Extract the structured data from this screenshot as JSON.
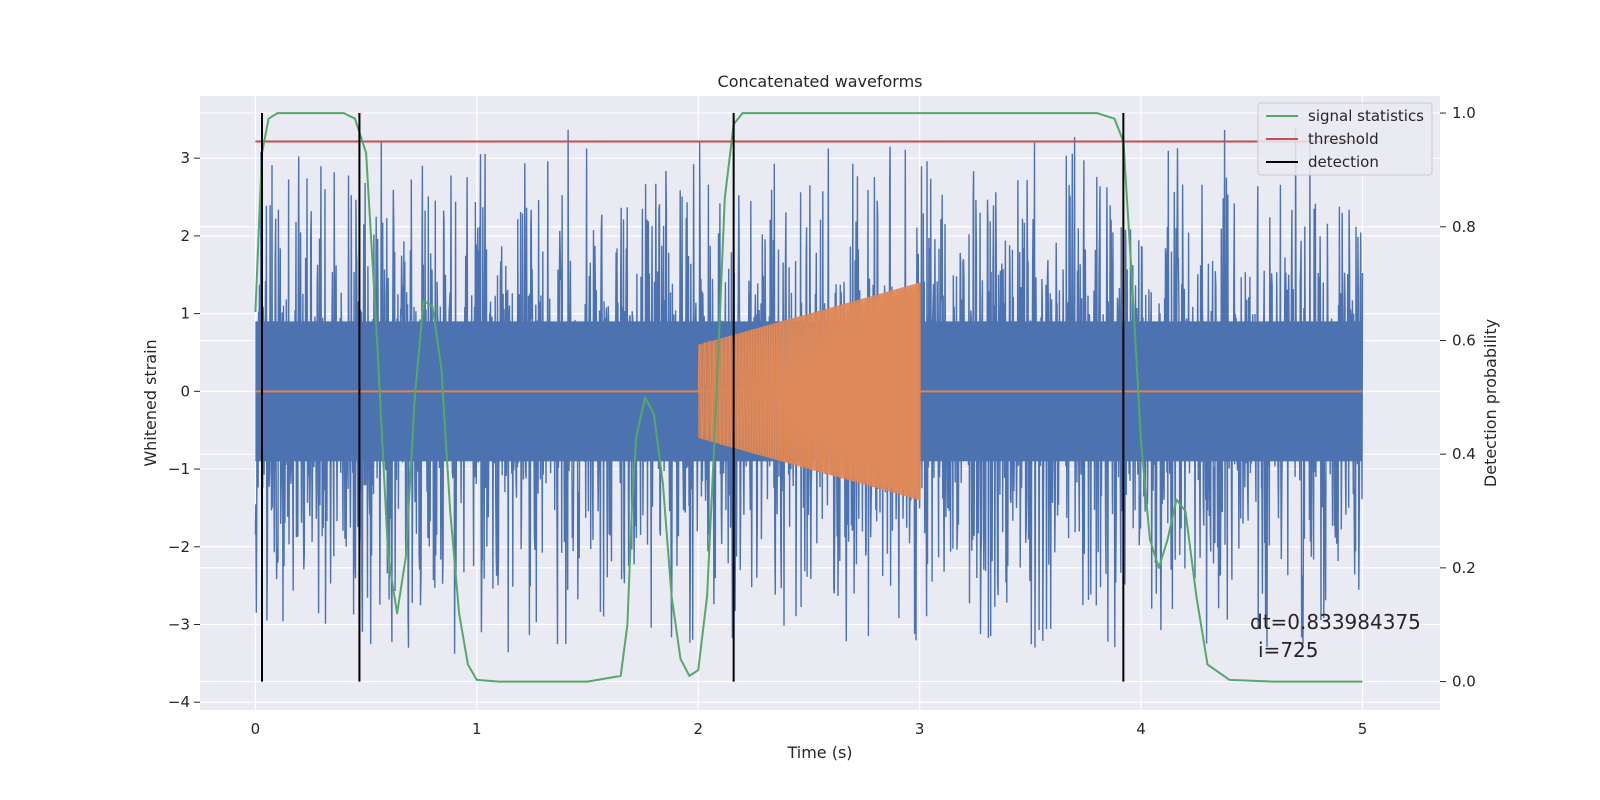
{
  "chart_data": {
    "type": "line",
    "title": "Concatenated waveforms",
    "xlabel": "Time (s)",
    "ylabel": "Whitened strain",
    "ylabel_right": "Detection probability",
    "xlim": [
      -0.25,
      5.35
    ],
    "ylim": [
      -4.1,
      3.8
    ],
    "ylim_right": [
      -0.05,
      1.03
    ],
    "x_ticks": [
      0,
      1,
      2,
      3,
      4,
      5
    ],
    "x_tick_labels": [
      "0",
      "1",
      "2",
      "3",
      "4",
      "5"
    ],
    "y_ticks": [
      3,
      2,
      1,
      0,
      -1,
      -2,
      -3,
      -4
    ],
    "y_tick_labels": [
      "3",
      "2",
      "1",
      "0",
      "−1",
      "−2",
      "−3",
      "−4"
    ],
    "y_right_ticks": [
      1.0,
      0.8,
      0.6,
      0.4,
      0.2,
      0.0
    ],
    "y_right_tick_labels": [
      "1.0",
      "0.8",
      "0.6",
      "0.4",
      "0.2",
      "0.0"
    ],
    "grid": true,
    "legend_position": "top-right",
    "colors": {
      "strain": "#4c72b0",
      "injection": "#dd8452",
      "signal_statistics": "#55a868",
      "threshold": "#c44e52",
      "detection": "#000000",
      "plot_background": "#eaeaf2",
      "grid": "#ffffff"
    },
    "series": [
      {
        "name": "signal statistics",
        "axis": "right",
        "x": [
          0.0,
          0.03,
          0.06,
          0.1,
          0.2,
          0.3,
          0.4,
          0.45,
          0.5,
          0.55,
          0.6,
          0.64,
          0.68,
          0.72,
          0.76,
          0.8,
          0.84,
          0.88,
          0.92,
          0.96,
          1.0,
          1.1,
          1.3,
          1.5,
          1.65,
          1.68,
          1.7,
          1.72,
          1.76,
          1.8,
          1.84,
          1.88,
          1.92,
          1.96,
          2.0,
          2.04,
          2.08,
          2.12,
          2.16,
          2.2,
          2.3,
          2.5,
          3.0,
          3.5,
          3.8,
          3.88,
          3.92,
          3.96,
          4.0,
          4.04,
          4.08,
          4.12,
          4.16,
          4.2,
          4.25,
          4.3,
          4.4,
          4.6,
          5.0
        ],
        "values": [
          0.65,
          0.93,
          0.99,
          1.0,
          1.0,
          1.0,
          1.0,
          0.99,
          0.93,
          0.6,
          0.22,
          0.12,
          0.22,
          0.5,
          0.67,
          0.66,
          0.55,
          0.3,
          0.12,
          0.03,
          0.003,
          0.0,
          0.0,
          0.0,
          0.01,
          0.1,
          0.3,
          0.43,
          0.5,
          0.47,
          0.35,
          0.15,
          0.04,
          0.01,
          0.02,
          0.15,
          0.48,
          0.85,
          0.98,
          1.0,
          1.0,
          1.0,
          1.0,
          1.0,
          1.0,
          0.99,
          0.95,
          0.7,
          0.42,
          0.25,
          0.2,
          0.25,
          0.32,
          0.3,
          0.15,
          0.03,
          0.003,
          0.0,
          0.0
        ]
      },
      {
        "name": "threshold",
        "axis": "right",
        "x": [
          0.0,
          5.0
        ],
        "values": [
          0.95,
          0.95
        ]
      },
      {
        "name": "detection",
        "axis": "right",
        "type": "vertical-lines",
        "x": [
          0.03,
          0.47,
          2.16,
          3.92
        ],
        "y_range": [
          0.0,
          1.0
        ]
      }
    ],
    "strain_noise": {
      "x_range": [
        0.0,
        5.0
      ],
      "envelope_abs": 0.9,
      "spike_max": 3.45,
      "spike_min": -3.85
    },
    "injection": {
      "x_range": [
        2.0,
        3.0
      ],
      "amplitude_start": 0.6,
      "amplitude_end": 1.4
    },
    "legend": [
      "signal statistics",
      "threshold",
      "detection"
    ],
    "annotations": [
      "dt=0.833984375",
      "i=725"
    ]
  }
}
